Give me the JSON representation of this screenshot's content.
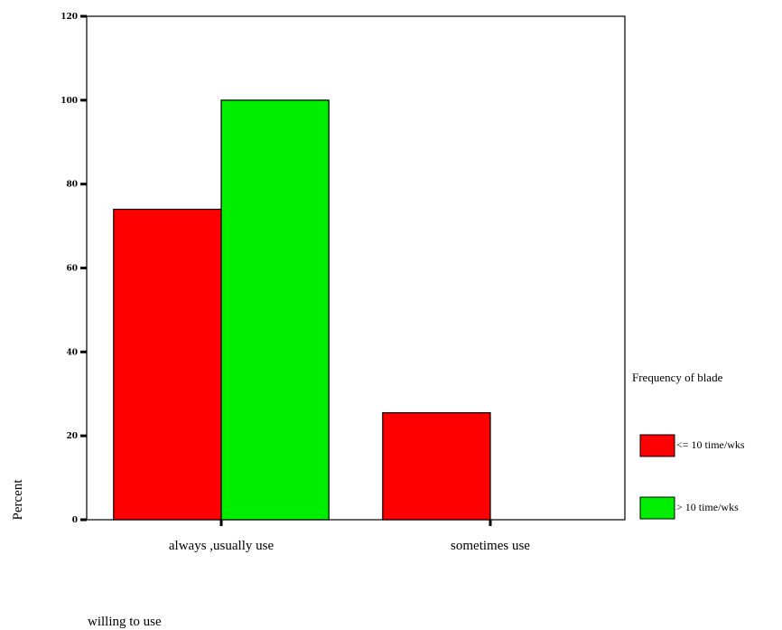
{
  "chart_data": {
    "type": "bar",
    "categories": [
      "always ,usually use",
      "sometimes use"
    ],
    "series": [
      {
        "name": "<= 10 time/wks",
        "color": "#ff0000",
        "values": [
          74,
          25.5
        ]
      },
      {
        "name": "> 10 time/wks",
        "color": "#00ee00",
        "values": [
          100,
          0
        ]
      }
    ],
    "ylim": [
      0,
      120
    ],
    "yticks": [
      0,
      20,
      40,
      60,
      80,
      100,
      120
    ],
    "ylabel": "Percent",
    "xlabel": "willing to use",
    "legend_title": "Frequency of blade",
    "legend_labels": [
      "<= 10 time/wks",
      "> 10 time/wks"
    ],
    "legend_position": "right",
    "grid": false
  }
}
